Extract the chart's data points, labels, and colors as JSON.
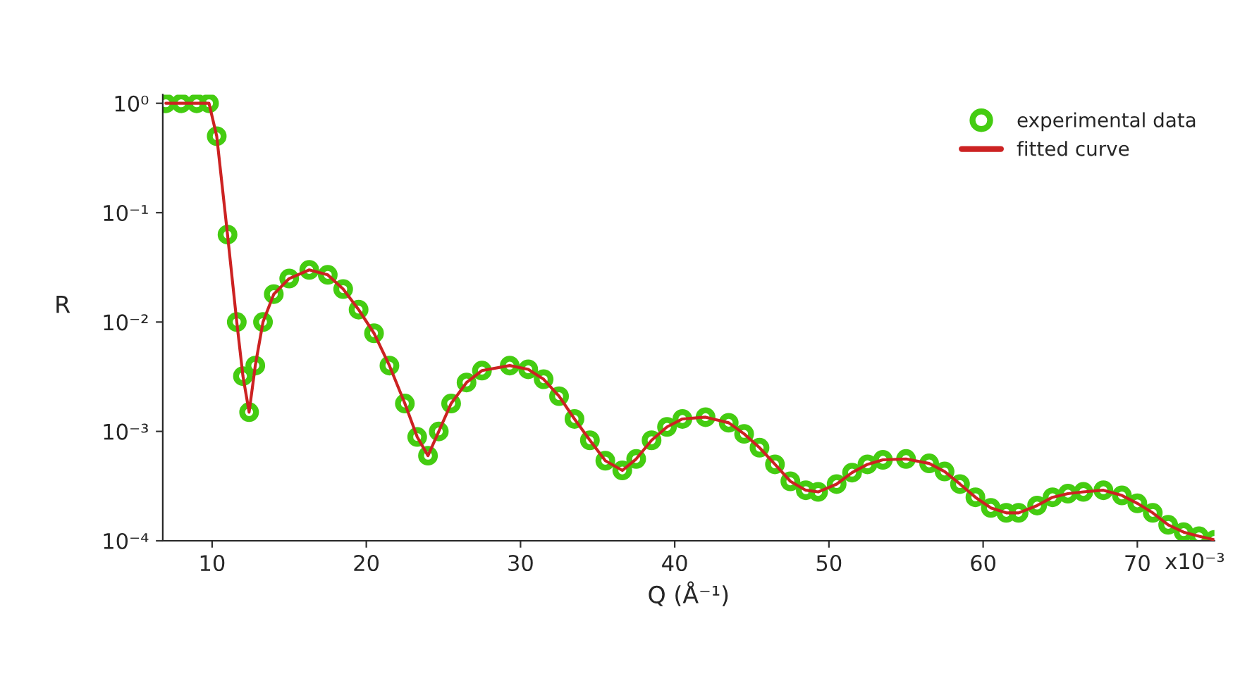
{
  "chart_data": {
    "type": "line",
    "xlabel": "Q (Å⁻¹)",
    "ylabel": "R",
    "log": "y",
    "xlim": [
      6.8,
      75
    ],
    "ylim": [
      0.0001,
      1.2
    ],
    "xticks": [
      10,
      20,
      30,
      40,
      50,
      60,
      70
    ],
    "annotations": [
      "x10⁻³"
    ],
    "yticks": [
      {
        "value": 1,
        "label": "10⁰"
      },
      {
        "value": 0.1,
        "label": "10⁻¹"
      },
      {
        "value": 0.01,
        "label": "10⁻²"
      },
      {
        "value": 0.001,
        "label": "10⁻³"
      },
      {
        "value": 0.0001,
        "label": "10⁻⁴"
      }
    ],
    "grid": false,
    "legend": "top right",
    "x": [
      7,
      8,
      9,
      9.8,
      10.3,
      11,
      11.6,
      12.0,
      12.4,
      12.8,
      13.3,
      14,
      15,
      16.3,
      17.5,
      18.5,
      19.5,
      20.5,
      21.5,
      22.5,
      23.3,
      24,
      24.7,
      25.5,
      26.5,
      27.5,
      29.3,
      30.5,
      31.5,
      32.5,
      33.5,
      34.5,
      35.5,
      36.6,
      37.5,
      38.5,
      39.5,
      40.5,
      42,
      43.5,
      44.5,
      45.5,
      46.5,
      47.5,
      48.5,
      49.3,
      50.5,
      51.5,
      52.5,
      53.5,
      55,
      56.5,
      57.5,
      58.5,
      59.5,
      60.5,
      61.5,
      62.3,
      63.5,
      64.5,
      65.5,
      66.5,
      67.8,
      69,
      70,
      71,
      72,
      73,
      74,
      75
    ],
    "series": [
      {
        "name": "experimental data",
        "type": "scatter",
        "marker": "circle",
        "color": "#44cc11",
        "values": [
          1,
          1,
          1,
          1,
          0.5,
          0.063,
          0.01,
          0.0032,
          0.0015,
          0.004,
          0.01,
          0.018,
          0.025,
          0.03,
          0.027,
          0.02,
          0.013,
          0.0079,
          0.004,
          0.0018,
          0.00089,
          0.0006,
          0.001,
          0.0018,
          0.0028,
          0.0036,
          0.004,
          0.0037,
          0.003,
          0.0021,
          0.0013,
          0.00083,
          0.00054,
          0.00044,
          0.00056,
          0.00083,
          0.0011,
          0.0013,
          0.00135,
          0.0012,
          0.00095,
          0.00071,
          0.0005,
          0.00035,
          0.00029,
          0.00028,
          0.00033,
          0.00042,
          0.0005,
          0.00055,
          0.00056,
          0.00051,
          0.00043,
          0.00033,
          0.00025,
          0.0002,
          0.00018,
          0.00018,
          0.00021,
          0.00025,
          0.00027,
          0.00028,
          0.00029,
          0.00026,
          0.00022,
          0.00018,
          0.00014,
          0.00012,
          0.00011,
          0.000102
        ]
      },
      {
        "name": "fitted curve",
        "line_style": "solid",
        "color": "#cc2222",
        "values": [
          1,
          1,
          1,
          1,
          0.5,
          0.063,
          0.01,
          0.0032,
          0.0015,
          0.004,
          0.01,
          0.018,
          0.025,
          0.03,
          0.027,
          0.02,
          0.013,
          0.0079,
          0.004,
          0.0018,
          0.00089,
          0.0006,
          0.001,
          0.0018,
          0.0028,
          0.0036,
          0.004,
          0.0037,
          0.003,
          0.0021,
          0.0013,
          0.00083,
          0.00054,
          0.00044,
          0.00056,
          0.00083,
          0.0011,
          0.0013,
          0.00135,
          0.0012,
          0.00095,
          0.00071,
          0.0005,
          0.00035,
          0.00029,
          0.00028,
          0.00033,
          0.00042,
          0.0005,
          0.00055,
          0.00056,
          0.00051,
          0.00043,
          0.00033,
          0.00025,
          0.0002,
          0.00018,
          0.00018,
          0.00021,
          0.00025,
          0.00027,
          0.00028,
          0.00029,
          0.00026,
          0.00022,
          0.00018,
          0.00014,
          0.00012,
          0.00011,
          0.000102
        ]
      }
    ]
  }
}
